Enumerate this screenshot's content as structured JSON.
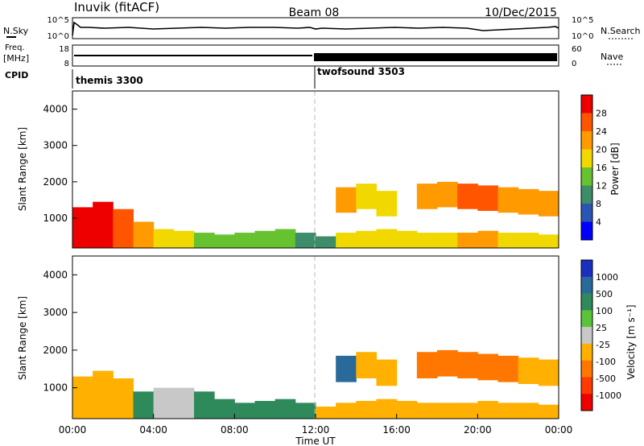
{
  "header": {
    "station": "Inuvik (fitACF)",
    "beam": "Beam 08",
    "date": "10/Dec/2015"
  },
  "top_panels": {
    "nsky_label": "N.Sky",
    "nsearch_label": "N.Search",
    "freq_label_1": "Freq.",
    "freq_label_2": "[MHz]",
    "nave_label": "Nave",
    "cpid_label": "CPID",
    "nsky_ticks": [
      "10^5",
      "10^0"
    ],
    "nsearch_ticks": [
      "10^5",
      "10^0"
    ],
    "freq_ticks": [
      "18",
      "8"
    ],
    "nave_ticks": [
      "60",
      "0"
    ]
  },
  "cpid": {
    "segments": [
      {
        "name": "themis 3300",
        "start_hour": 0
      },
      {
        "name": "twofsound 3503",
        "start_hour": 12
      }
    ]
  },
  "colors": {
    "power": [
      "#0000ff",
      "#2b55b3",
      "#3d8c6a",
      "#66c22e",
      "#f0d800",
      "#ff9a00",
      "#ff5500",
      "#ee0000"
    ],
    "velocity": [
      "#1a2fbf",
      "#2a6a9a",
      "#2e8a5a",
      "#5ac33a",
      "#c8c8c8",
      "#ffb000",
      "#ff7700",
      "#ff3a00",
      "#ee0000"
    ]
  },
  "chart_data": [
    {
      "type": "heatmap",
      "panel": "power",
      "ylabel": "Slant Range [km]",
      "ylim": [
        180,
        4500
      ],
      "yticks": [
        1000,
        2000,
        3000,
        4000
      ],
      "colorbar_label": "Power [dB]",
      "colorbar_ticks": [
        "28",
        "24",
        "20",
        "16",
        "12",
        "8",
        "4"
      ],
      "x": [
        0,
        1,
        2,
        3,
        4,
        5,
        6,
        7,
        8,
        9,
        10,
        11,
        12,
        13,
        14,
        15,
        16,
        17,
        18,
        19,
        20,
        21,
        22,
        23
      ],
      "series": [
        {
          "name": "near_band_top_km",
          "values": [
            1300,
            1450,
            1250,
            900,
            700,
            650,
            600,
            550,
            600,
            650,
            700,
            600,
            500,
            600,
            650,
            700,
            650,
            600,
            600,
            600,
            650,
            600,
            600,
            550
          ]
        },
        {
          "name": "near_band_power_db",
          "values": [
            28,
            28,
            26,
            20,
            16,
            16,
            14,
            14,
            12,
            12,
            12,
            10,
            10,
            16,
            16,
            18,
            18,
            18,
            18,
            20,
            20,
            18,
            18,
            18
          ]
        },
        {
          "name": "far_band_center_km",
          "values": [
            null,
            null,
            null,
            null,
            null,
            null,
            null,
            null,
            null,
            null,
            null,
            null,
            null,
            1500,
            1600,
            1400,
            null,
            1600,
            1650,
            1600,
            1550,
            1500,
            1450,
            1400
          ]
        },
        {
          "name": "far_band_power_db",
          "values": [
            null,
            null,
            null,
            null,
            null,
            null,
            null,
            null,
            null,
            null,
            null,
            null,
            null,
            20,
            16,
            18,
            null,
            20,
            22,
            24,
            24,
            22,
            22,
            20
          ]
        }
      ]
    },
    {
      "type": "heatmap",
      "panel": "velocity",
      "xlabel": "Time UT",
      "ylabel": "Slant Range [km]",
      "ylim": [
        180,
        4500
      ],
      "yticks": [
        1000,
        2000,
        3000,
        4000
      ],
      "xticks": [
        "00:00",
        "04:00",
        "08:00",
        "12:00",
        "16:00",
        "20:00",
        "00:00"
      ],
      "colorbar_label": "Velocity [m s⁻¹]",
      "colorbar_ticks": [
        "1000",
        "500",
        "100",
        "25",
        "-25",
        "-100",
        "-500",
        "-1000"
      ],
      "x": [
        0,
        1,
        2,
        3,
        4,
        5,
        6,
        7,
        8,
        9,
        10,
        11,
        12,
        13,
        14,
        15,
        16,
        17,
        18,
        19,
        20,
        21,
        22,
        23
      ],
      "series": [
        {
          "name": "near_band_top_km",
          "values": [
            1300,
            1450,
            1250,
            900,
            1000,
            1000,
            900,
            700,
            600,
            650,
            700,
            600,
            500,
            600,
            650,
            700,
            650,
            600,
            600,
            600,
            650,
            600,
            600,
            550
          ]
        },
        {
          "name": "near_band_velocity",
          "values": [
            -100,
            -100,
            -100,
            100,
            0,
            0,
            100,
            100,
            100,
            100,
            100,
            100,
            -100,
            -100,
            -100,
            -100,
            -100,
            -100,
            -100,
            -100,
            -100,
            -100,
            -100,
            -100
          ]
        },
        {
          "name": "far_band_center_km",
          "values": [
            null,
            null,
            null,
            null,
            null,
            null,
            null,
            null,
            null,
            null,
            null,
            null,
            null,
            1500,
            1600,
            1400,
            null,
            1600,
            1650,
            1600,
            1550,
            1500,
            1450,
            1400
          ]
        },
        {
          "name": "far_band_velocity",
          "values": [
            null,
            null,
            null,
            null,
            null,
            null,
            null,
            null,
            null,
            null,
            null,
            null,
            null,
            500,
            -100,
            -100,
            null,
            -500,
            -500,
            -500,
            -500,
            -500,
            -100,
            -100
          ]
        }
      ]
    }
  ]
}
